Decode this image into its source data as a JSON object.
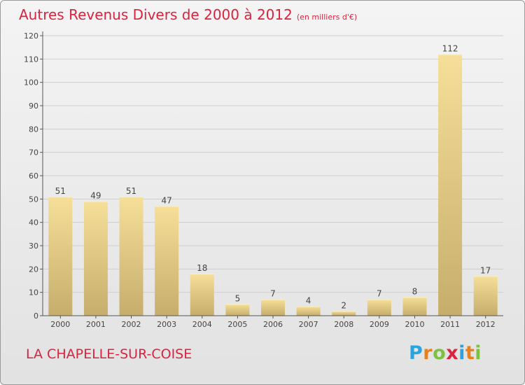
{
  "title": "Autres Revenus Divers de 2000 à 2012",
  "subtitle": "(en milliers d'€)",
  "place_name": "LA CHAPELLE-SUR-COISE",
  "brand": {
    "letters": [
      "P",
      "r",
      "o",
      "x",
      "i",
      "t",
      "i"
    ],
    "colors": [
      "#2aa4e0",
      "#e8801d",
      "#7cc142",
      "#d9233f",
      "#2aa4e0",
      "#e8801d",
      "#7cc142"
    ]
  },
  "colors": {
    "accent": "#d9233f",
    "bar_light": "#f6df98",
    "bar_dark": "#c6ad6c",
    "grid": "#cfcfcf",
    "axis": "#555555"
  },
  "chart_data": {
    "type": "bar",
    "categories": [
      "2000",
      "2001",
      "2002",
      "2003",
      "2004",
      "2005",
      "2006",
      "2007",
      "2008",
      "2009",
      "2010",
      "2011",
      "2012"
    ],
    "values": [
      51,
      49,
      51,
      47,
      18,
      5,
      7,
      4,
      2,
      7,
      8,
      112,
      17
    ],
    "ylim": [
      0,
      120
    ],
    "yticks": [
      0,
      10,
      20,
      30,
      40,
      50,
      60,
      70,
      80,
      90,
      100,
      110,
      120
    ],
    "grid": true,
    "data_labels": true
  }
}
